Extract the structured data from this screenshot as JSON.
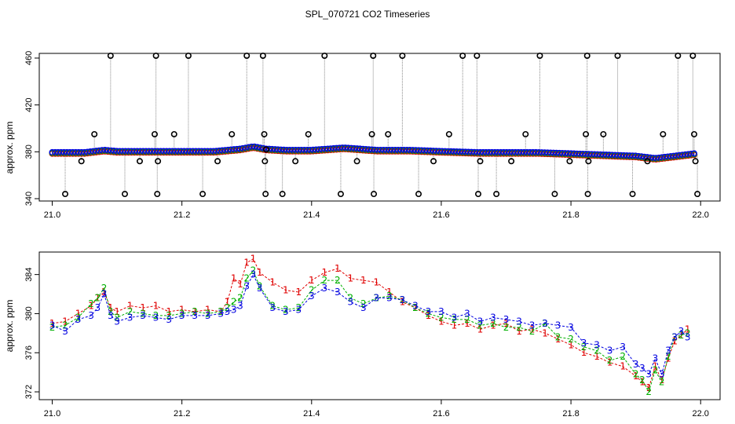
{
  "chart_data": [
    {
      "type": "scatter",
      "title": "SPL_070721  CO2 Timeseries",
      "ylabel": "approx. ppm",
      "xlim": [
        20.98,
        22.03
      ],
      "ylim": [
        338,
        464
      ],
      "xticks": [
        "21.0",
        "21.2",
        "21.4",
        "21.6",
        "21.8",
        "22.0"
      ],
      "xtick_values": [
        21.0,
        21.2,
        21.4,
        21.6,
        21.8,
        22.0
      ],
      "yticks": [
        "340",
        "380",
        "420",
        "460"
      ],
      "ytick_values": [
        340,
        380,
        420,
        460
      ],
      "baseline": {
        "x": [
          21.0,
          21.05,
          21.08,
          21.1,
          21.15,
          21.2,
          21.25,
          21.29,
          21.31,
          21.33,
          21.36,
          21.4,
          21.45,
          21.5,
          21.55,
          21.6,
          21.66,
          21.7,
          21.75,
          21.8,
          21.85,
          21.9,
          21.93,
          21.96,
          21.99
        ],
        "y": [
          379,
          379,
          381,
          380,
          380,
          380,
          380,
          382,
          384,
          382,
          381,
          381,
          383,
          381,
          381,
          380,
          379,
          379,
          379,
          378,
          377,
          376,
          374,
          376,
          378
        ]
      },
      "outliers": {
        "x": [
          21.02,
          21.045,
          21.065,
          21.09,
          21.112,
          21.135,
          21.158,
          21.16,
          21.162,
          21.163,
          21.188,
          21.21,
          21.232,
          21.255,
          21.277,
          21.3,
          21.325,
          21.327,
          21.328,
          21.329,
          21.33,
          21.355,
          21.375,
          21.395,
          21.42,
          21.445,
          21.47,
          21.493,
          21.495,
          21.496,
          21.518,
          21.54,
          21.565,
          21.588,
          21.612,
          21.633,
          21.655,
          21.657,
          21.66,
          21.685,
          21.708,
          21.73,
          21.752,
          21.775,
          21.798,
          21.823,
          21.825,
          21.826,
          21.827,
          21.85,
          21.872,
          21.895,
          21.918,
          21.942,
          21.965,
          21.988,
          21.99,
          21.992,
          21.995
        ],
        "y": [
          344,
          372,
          395,
          462,
          344,
          372,
          395,
          462,
          344,
          372,
          395,
          462,
          344,
          372,
          395,
          462,
          462,
          395,
          372,
          344,
          382,
          344,
          372,
          395,
          462,
          344,
          372,
          395,
          462,
          344,
          395,
          462,
          344,
          372,
          395,
          462,
          462,
          344,
          372,
          344,
          372,
          395,
          462,
          344,
          372,
          395,
          462,
          344,
          372,
          395,
          462,
          344,
          372,
          395,
          462,
          462,
          395,
          372,
          344
        ]
      }
    },
    {
      "type": "scatter",
      "ylabel": "approx. ppm",
      "xlim": [
        20.98,
        22.03
      ],
      "ylim": [
        371.2,
        386.3
      ],
      "xticks": [
        "21.0",
        "21.2",
        "21.4",
        "21.6",
        "21.8",
        "22.0"
      ],
      "xtick_values": [
        21.0,
        21.2,
        21.4,
        21.6,
        21.8,
        22.0
      ],
      "yticks": [
        "372",
        "376",
        "380",
        "384"
      ],
      "ytick_values": [
        372,
        376,
        380,
        384
      ],
      "series": [
        {
          "name": "1",
          "color": "#e00000",
          "x": [
            21.0,
            21.02,
            21.04,
            21.06,
            21.07,
            21.08,
            21.09,
            21.1,
            21.12,
            21.14,
            21.16,
            21.18,
            21.2,
            21.22,
            21.24,
            21.26,
            21.27,
            21.28,
            21.29,
            21.3,
            21.31,
            21.32,
            21.34,
            21.36,
            21.38,
            21.4,
            21.42,
            21.44,
            21.46,
            21.48,
            21.5,
            21.52,
            21.54,
            21.56,
            21.58,
            21.6,
            21.62,
            21.64,
            21.66,
            21.68,
            21.7,
            21.72,
            21.74,
            21.76,
            21.78,
            21.8,
            21.82,
            21.84,
            21.86,
            21.88,
            21.9,
            21.91,
            21.92,
            21.93,
            21.94,
            21.95,
            21.96,
            21.97,
            21.98
          ],
          "y": [
            379.0,
            379.2,
            380.0,
            380.8,
            381.6,
            382.2,
            380.6,
            380.2,
            380.8,
            380.6,
            380.8,
            380.2,
            380.4,
            380.2,
            380.4,
            380.2,
            381.2,
            383.6,
            383.0,
            385.2,
            385.6,
            384.2,
            383.2,
            382.4,
            382.2,
            383.4,
            384.2,
            384.6,
            383.6,
            383.4,
            383.2,
            382.2,
            381.2,
            380.6,
            379.8,
            379.2,
            378.8,
            379.0,
            378.4,
            378.8,
            379.0,
            378.2,
            378.4,
            378.0,
            377.4,
            376.8,
            376.0,
            375.6,
            375.0,
            374.6,
            373.6,
            373.0,
            372.4,
            374.6,
            373.2,
            375.4,
            377.2,
            377.8,
            378.4
          ]
        },
        {
          "name": "2",
          "color": "#00b000",
          "x": [
            21.0,
            21.02,
            21.04,
            21.06,
            21.07,
            21.08,
            21.09,
            21.1,
            21.12,
            21.14,
            21.16,
            21.18,
            21.2,
            21.22,
            21.24,
            21.26,
            21.27,
            21.28,
            21.29,
            21.3,
            21.31,
            21.32,
            21.34,
            21.36,
            21.38,
            21.4,
            21.42,
            21.44,
            21.46,
            21.48,
            21.5,
            21.52,
            21.54,
            21.56,
            21.58,
            21.6,
            21.62,
            21.64,
            21.66,
            21.68,
            21.7,
            21.72,
            21.74,
            21.76,
            21.78,
            21.8,
            21.82,
            21.84,
            21.86,
            21.88,
            21.9,
            21.91,
            21.92,
            21.93,
            21.94,
            21.95,
            21.96,
            21.97,
            21.98
          ],
          "y": [
            378.6,
            378.8,
            379.6,
            381.0,
            381.6,
            382.6,
            380.2,
            379.6,
            380.2,
            380.0,
            379.8,
            379.8,
            380.0,
            380.2,
            380.0,
            380.2,
            380.6,
            381.2,
            381.6,
            383.6,
            384.4,
            382.8,
            380.8,
            380.4,
            380.6,
            382.4,
            383.4,
            383.4,
            381.6,
            381.0,
            381.6,
            381.8,
            381.4,
            380.6,
            380.0,
            379.6,
            379.4,
            379.4,
            378.8,
            379.0,
            378.6,
            378.6,
            378.2,
            379.0,
            377.6,
            377.4,
            376.6,
            376.2,
            375.2,
            375.6,
            373.8,
            373.2,
            372.0,
            374.2,
            373.0,
            375.6,
            377.6,
            377.8,
            378.0
          ]
        },
        {
          "name": "3",
          "color": "#0000e0",
          "x": [
            21.0,
            21.02,
            21.04,
            21.06,
            21.07,
            21.08,
            21.09,
            21.1,
            21.12,
            21.14,
            21.16,
            21.18,
            21.2,
            21.22,
            21.24,
            21.26,
            21.27,
            21.28,
            21.29,
            21.3,
            21.31,
            21.32,
            21.34,
            21.36,
            21.38,
            21.4,
            21.42,
            21.44,
            21.46,
            21.48,
            21.5,
            21.52,
            21.54,
            21.56,
            21.58,
            21.6,
            21.62,
            21.64,
            21.66,
            21.68,
            21.7,
            21.72,
            21.74,
            21.76,
            21.78,
            21.8,
            21.82,
            21.84,
            21.86,
            21.88,
            21.9,
            21.91,
            21.92,
            21.93,
            21.94,
            21.95,
            21.96,
            21.97,
            21.98
          ],
          "y": [
            378.8,
            378.2,
            379.4,
            379.8,
            380.6,
            382.0,
            379.8,
            379.2,
            379.6,
            379.8,
            379.6,
            379.4,
            379.8,
            379.8,
            379.8,
            380.0,
            380.2,
            380.4,
            380.8,
            382.8,
            384.0,
            382.6,
            380.6,
            380.2,
            380.4,
            381.8,
            382.6,
            382.2,
            381.2,
            380.6,
            381.6,
            381.6,
            381.4,
            380.8,
            380.2,
            380.2,
            379.6,
            380.0,
            379.2,
            379.6,
            379.4,
            379.2,
            378.8,
            379.0,
            378.8,
            378.6,
            377.0,
            376.8,
            376.2,
            376.6,
            374.8,
            374.4,
            373.8,
            375.4,
            373.8,
            376.2,
            377.6,
            378.2,
            377.6
          ]
        }
      ]
    }
  ]
}
